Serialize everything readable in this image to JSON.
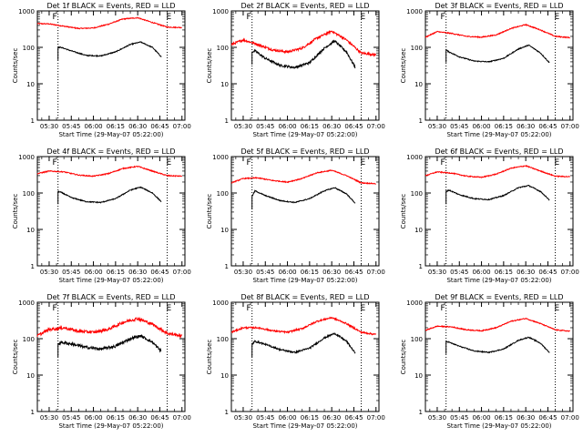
{
  "chart_data": [
    {
      "type": "line",
      "title": "Det 1f BLACK = Events, RED = LLD",
      "xlabel": "Start Time (29-May-07 05:22:00)",
      "ylabel": "Counts/sec",
      "scale": "log",
      "ylim": [
        1,
        1000
      ],
      "yticks": [
        "1",
        "10",
        "100",
        "1000"
      ],
      "xlim": [
        "05:22",
        "07:02"
      ],
      "xticks": [
        "05:30",
        "05:45",
        "06:00",
        "06:15",
        "06:30",
        "06:45",
        "07:00"
      ],
      "markers": [
        {
          "time": "05:36",
          "label": "F"
        },
        {
          "time": "06:50",
          "label": "E"
        }
      ],
      "series": [
        {
          "name": "LLD",
          "color": "#ff0000",
          "x": [
            "05:22",
            "05:30",
            "05:40",
            "05:50",
            "06:00",
            "06:10",
            "06:20",
            "06:30",
            "06:40",
            "06:50",
            "07:00"
          ],
          "y": [
            450,
            440,
            380,
            330,
            340,
            430,
            600,
            650,
            480,
            360,
            350
          ],
          "noise": 0.03
        },
        {
          "name": "Events",
          "color": "#000000",
          "x": [
            "05:36",
            "05:38",
            "05:45",
            "05:55",
            "06:05",
            "06:15",
            "06:25",
            "06:32",
            "06:40",
            "06:46"
          ],
          "y": [
            100,
            100,
            80,
            60,
            58,
            75,
            120,
            140,
            100,
            55
          ],
          "noise": 0.03
        }
      ]
    },
    {
      "type": "line",
      "title": "Det 2f BLACK = Events, RED = LLD",
      "xlabel": "Start Time (29-May-07 05:22:00)",
      "ylabel": "Counts/sec",
      "scale": "log",
      "ylim": [
        1,
        1000
      ],
      "yticks": [
        "1",
        "10",
        "100",
        "1000"
      ],
      "xlim": [
        "05:22",
        "07:02"
      ],
      "xticks": [
        "05:30",
        "05:45",
        "06:00",
        "06:15",
        "06:30",
        "06:45",
        "07:00"
      ],
      "markers": [
        {
          "time": "05:36",
          "label": "F"
        },
        {
          "time": "06:50",
          "label": "E"
        }
      ],
      "series": [
        {
          "name": "LLD",
          "color": "#ff0000",
          "x": [
            "05:22",
            "05:30",
            "05:40",
            "05:50",
            "06:00",
            "06:10",
            "06:20",
            "06:30",
            "06:40",
            "06:50",
            "07:00"
          ],
          "y": [
            120,
            160,
            120,
            85,
            75,
            95,
            180,
            280,
            160,
            70,
            62
          ],
          "noise": 0.07
        },
        {
          "name": "Events",
          "color": "#000000",
          "x": [
            "05:36",
            "05:38",
            "05:45",
            "05:55",
            "06:05",
            "06:15",
            "06:25",
            "06:32",
            "06:40",
            "06:46"
          ],
          "y": [
            75,
            80,
            50,
            32,
            28,
            38,
            95,
            150,
            75,
            28
          ],
          "noise": 0.07
        }
      ]
    },
    {
      "type": "line",
      "title": "Det 3f BLACK = Events, RED = LLD",
      "xlabel": "Start Time (29-May-07 05:22:00)",
      "ylabel": "Counts/sec",
      "scale": "log",
      "ylim": [
        1,
        1000
      ],
      "yticks": [
        "1",
        "10",
        "100",
        "1000"
      ],
      "xlim": [
        "05:22",
        "07:02"
      ],
      "xticks": [
        "05:30",
        "05:45",
        "06:00",
        "06:15",
        "06:30",
        "06:45",
        "07:00"
      ],
      "markers": [
        {
          "time": "05:36",
          "label": "F"
        },
        {
          "time": "06:50",
          "label": "E"
        }
      ],
      "series": [
        {
          "name": "LLD",
          "color": "#ff0000",
          "x": [
            "05:22",
            "05:30",
            "05:40",
            "05:50",
            "06:00",
            "06:10",
            "06:20",
            "06:30",
            "06:40",
            "06:50",
            "07:00"
          ],
          "y": [
            190,
            270,
            240,
            200,
            190,
            220,
            330,
            420,
            300,
            200,
            185
          ],
          "noise": 0.03
        },
        {
          "name": "Events",
          "color": "#000000",
          "x": [
            "05:36",
            "05:38",
            "05:45",
            "05:55",
            "06:05",
            "06:15",
            "06:25",
            "06:32",
            "06:40",
            "06:46"
          ],
          "y": [
            85,
            75,
            55,
            42,
            40,
            50,
            90,
            115,
            70,
            38
          ],
          "noise": 0.03
        }
      ]
    },
    {
      "type": "line",
      "title": "Det 4f BLACK = Events, RED = LLD",
      "xlabel": "Start Time (29-May-07 05:22:00)",
      "ylabel": "Counts/sec",
      "scale": "log",
      "ylim": [
        1,
        1000
      ],
      "yticks": [
        "1",
        "10",
        "100",
        "1000"
      ],
      "xlim": [
        "05:22",
        "07:02"
      ],
      "xticks": [
        "05:30",
        "05:45",
        "06:00",
        "06:15",
        "06:30",
        "06:45",
        "07:00"
      ],
      "markers": [
        {
          "time": "05:36",
          "label": "F"
        },
        {
          "time": "06:50",
          "label": "E"
        }
      ],
      "series": [
        {
          "name": "LLD",
          "color": "#ff0000",
          "x": [
            "05:22",
            "05:30",
            "05:40",
            "05:50",
            "06:00",
            "06:10",
            "06:20",
            "06:30",
            "06:40",
            "06:50",
            "07:00"
          ],
          "y": [
            340,
            400,
            380,
            310,
            290,
            340,
            470,
            540,
            400,
            300,
            290
          ],
          "noise": 0.03
        },
        {
          "name": "Events",
          "color": "#000000",
          "x": [
            "05:36",
            "05:38",
            "05:45",
            "05:55",
            "06:05",
            "06:15",
            "06:25",
            "06:32",
            "06:40",
            "06:46"
          ],
          "y": [
            110,
            105,
            75,
            58,
            55,
            70,
            120,
            145,
            100,
            58
          ],
          "noise": 0.03
        }
      ]
    },
    {
      "type": "line",
      "title": "Det 5f BLACK = Events, RED = LLD",
      "xlabel": "Start Time (29-May-07 05:22:00)",
      "ylabel": "Counts/sec",
      "scale": "log",
      "ylim": [
        1,
        1000
      ],
      "yticks": [
        "1",
        "10",
        "100",
        "1000"
      ],
      "xlim": [
        "05:22",
        "07:02"
      ],
      "xticks": [
        "05:30",
        "05:45",
        "06:00",
        "06:15",
        "06:30",
        "06:45",
        "07:00"
      ],
      "markers": [
        {
          "time": "05:36",
          "label": "F"
        },
        {
          "time": "06:50",
          "label": "E"
        }
      ],
      "series": [
        {
          "name": "LLD",
          "color": "#ff0000",
          "x": [
            "05:22",
            "05:30",
            "05:40",
            "05:50",
            "06:00",
            "06:10",
            "06:20",
            "06:30",
            "06:40",
            "06:50",
            "07:00"
          ],
          "y": [
            190,
            250,
            260,
            220,
            200,
            250,
            360,
            420,
            300,
            190,
            180
          ],
          "noise": 0.03
        },
        {
          "name": "Events",
          "color": "#000000",
          "x": [
            "05:36",
            "05:38",
            "05:45",
            "05:55",
            "06:05",
            "06:15",
            "06:25",
            "06:32",
            "06:40",
            "06:46"
          ],
          "y": [
            80,
            115,
            85,
            62,
            55,
            70,
            115,
            140,
            95,
            52
          ],
          "noise": 0.03
        }
      ]
    },
    {
      "type": "line",
      "title": "Det 6f BLACK = Events, RED = LLD",
      "xlabel": "Start Time (29-May-07 05:22:00)",
      "ylabel": "Counts/sec",
      "scale": "log",
      "ylim": [
        1,
        1000
      ],
      "yticks": [
        "1",
        "10",
        "100",
        "1000"
      ],
      "xlim": [
        "05:22",
        "07:02"
      ],
      "xticks": [
        "05:30",
        "05:45",
        "06:00",
        "06:15",
        "06:30",
        "06:45",
        "07:00"
      ],
      "markers": [
        {
          "time": "05:36",
          "label": "F"
        },
        {
          "time": "06:50",
          "label": "E"
        }
      ],
      "series": [
        {
          "name": "LLD",
          "color": "#ff0000",
          "x": [
            "05:22",
            "05:30",
            "05:40",
            "05:50",
            "06:00",
            "06:10",
            "06:20",
            "06:30",
            "06:40",
            "06:50",
            "07:00"
          ],
          "y": [
            300,
            380,
            350,
            290,
            270,
            330,
            480,
            560,
            400,
            290,
            280
          ],
          "noise": 0.03
        },
        {
          "name": "Events",
          "color": "#000000",
          "x": [
            "05:36",
            "05:38",
            "05:45",
            "05:55",
            "06:05",
            "06:15",
            "06:25",
            "06:32",
            "06:40",
            "06:46"
          ],
          "y": [
            110,
            120,
            90,
            70,
            66,
            85,
            140,
            160,
            110,
            65
          ],
          "noise": 0.03
        }
      ]
    },
    {
      "type": "line",
      "title": "Det 7f BLACK = Events, RED = LLD",
      "xlabel": "Start Time (29-May-07 05:22:00)",
      "ylabel": "Counts/sec",
      "scale": "log",
      "ylim": [
        1,
        1000
      ],
      "yticks": [
        "1",
        "10",
        "100",
        "1000"
      ],
      "xlim": [
        "05:22",
        "07:02"
      ],
      "xticks": [
        "05:30",
        "05:45",
        "06:00",
        "06:15",
        "06:30",
        "06:45",
        "07:00"
      ],
      "markers": [
        {
          "time": "05:36",
          "label": "F"
        },
        {
          "time": "06:50",
          "label": "E"
        }
      ],
      "series": [
        {
          "name": "LLD",
          "color": "#ff0000",
          "x": [
            "05:22",
            "05:30",
            "05:40",
            "05:50",
            "06:00",
            "06:10",
            "06:20",
            "06:30",
            "06:40",
            "06:50",
            "07:00"
          ],
          "y": [
            120,
            180,
            200,
            160,
            150,
            180,
            280,
            360,
            250,
            140,
            120
          ],
          "noise": 0.09
        },
        {
          "name": "Events",
          "color": "#000000",
          "x": [
            "05:36",
            "05:38",
            "05:45",
            "05:55",
            "06:05",
            "06:15",
            "06:25",
            "06:32",
            "06:40",
            "06:46"
          ],
          "y": [
            70,
            80,
            72,
            58,
            52,
            62,
            100,
            120,
            80,
            45
          ],
          "noise": 0.09
        }
      ]
    },
    {
      "type": "line",
      "title": "Det 8f BLACK = Events, RED = LLD",
      "xlabel": "Start Time (29-May-07 05:22:00)",
      "ylabel": "Counts/sec",
      "scale": "log",
      "ylim": [
        1,
        1000
      ],
      "yticks": [
        "1",
        "10",
        "100",
        "1000"
      ],
      "xlim": [
        "05:22",
        "07:02"
      ],
      "xticks": [
        "05:30",
        "05:45",
        "06:00",
        "06:15",
        "06:30",
        "06:45",
        "07:00"
      ],
      "markers": [
        {
          "time": "05:36",
          "label": "F"
        },
        {
          "time": "06:50",
          "label": "E"
        }
      ],
      "series": [
        {
          "name": "LLD",
          "color": "#ff0000",
          "x": [
            "05:22",
            "05:30",
            "05:40",
            "05:50",
            "06:00",
            "06:10",
            "06:20",
            "06:30",
            "06:40",
            "06:50",
            "07:00"
          ],
          "y": [
            150,
            200,
            200,
            165,
            150,
            190,
            300,
            380,
            260,
            150,
            130
          ],
          "noise": 0.05
        },
        {
          "name": "Events",
          "color": "#000000",
          "x": [
            "05:36",
            "05:38",
            "05:45",
            "05:55",
            "06:05",
            "06:15",
            "06:25",
            "06:32",
            "06:40",
            "06:46"
          ],
          "y": [
            70,
            85,
            70,
            50,
            42,
            55,
            105,
            140,
            85,
            40
          ],
          "noise": 0.05
        }
      ]
    },
    {
      "type": "line",
      "title": "Det 9f BLACK = Events, RED = LLD",
      "xlabel": "Start Time (29-May-07 05:22:00)",
      "ylabel": "Counts/sec",
      "scale": "log",
      "ylim": [
        1,
        1000
      ],
      "yticks": [
        "1",
        "10",
        "100",
        "1000"
      ],
      "xlim": [
        "05:22",
        "07:02"
      ],
      "xticks": [
        "05:30",
        "05:45",
        "06:00",
        "06:15",
        "06:30",
        "06:45",
        "07:00"
      ],
      "markers": [
        {
          "time": "05:36",
          "label": "F"
        },
        {
          "time": "06:50",
          "label": "E"
        }
      ],
      "series": [
        {
          "name": "LLD",
          "color": "#ff0000",
          "x": [
            "05:22",
            "05:30",
            "05:40",
            "05:50",
            "06:00",
            "06:10",
            "06:20",
            "06:30",
            "06:40",
            "06:50",
            "07:00"
          ],
          "y": [
            170,
            220,
            210,
            175,
            165,
            200,
            300,
            360,
            260,
            175,
            160
          ],
          "noise": 0.03
        },
        {
          "name": "Events",
          "color": "#000000",
          "x": [
            "05:36",
            "05:38",
            "05:45",
            "05:55",
            "06:05",
            "06:15",
            "06:25",
            "06:32",
            "06:40",
            "06:46"
          ],
          "y": [
            85,
            80,
            62,
            46,
            42,
            52,
            90,
            110,
            75,
            42
          ],
          "noise": 0.03
        }
      ]
    }
  ]
}
